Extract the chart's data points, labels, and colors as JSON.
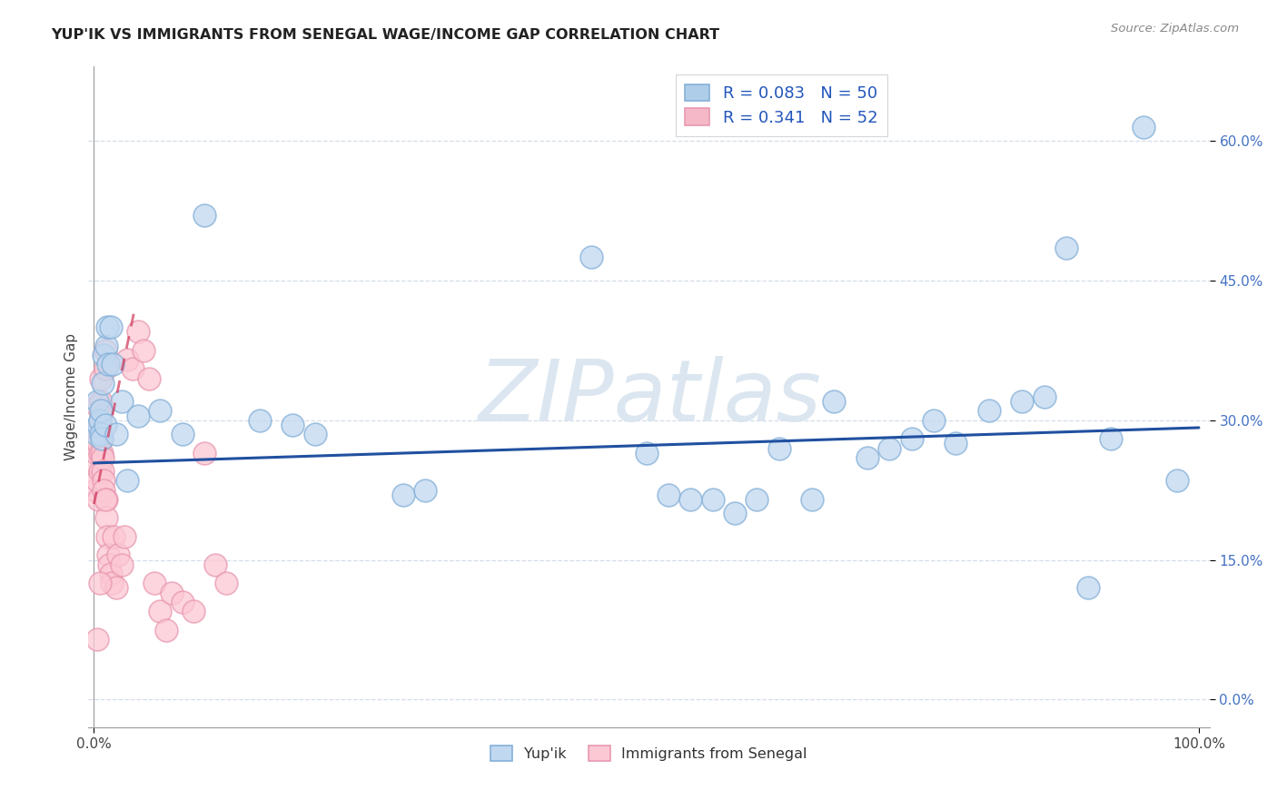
{
  "title": "YUP'IK VS IMMIGRANTS FROM SENEGAL WAGE/INCOME GAP CORRELATION CHART",
  "source": "Source: ZipAtlas.com",
  "ylabel": "Wage/Income Gap",
  "xlim": [
    -0.005,
    1.01
  ],
  "ylim": [
    -0.03,
    0.68
  ],
  "yticks": [
    0.0,
    0.15,
    0.3,
    0.45,
    0.6
  ],
  "xtick_labels": [
    "0.0%",
    "100.0%"
  ],
  "xtick_positions": [
    0.0,
    1.0
  ],
  "ytick_labels": [
    "0.0%",
    "15.0%",
    "30.0%",
    "45.0%",
    "60.0%"
  ],
  "legend_R_entries": [
    {
      "label": "R = 0.083   N = 50",
      "color": "#aecde8"
    },
    {
      "label": "R = 0.341   N = 52",
      "color": "#f5b8c8"
    }
  ],
  "watermark": "ZIPatlas",
  "watermark_color": "#d8e4ef",
  "blue_color": "#a8c8e8",
  "pink_color": "#f5b0c0",
  "blue_fill": "#c0d8f0",
  "pink_fill": "#fcc8d4",
  "blue_edge": "#85b0d8",
  "pink_edge": "#e898b0",
  "blue_line_color": "#2050a0",
  "pink_line_color": "#d03055",
  "background_color": "#ffffff",
  "grid_color": "#d4dde8",
  "blue_tick_color": "#4472c4",
  "yupik_x": [
    0.002,
    0.003,
    0.004,
    0.005,
    0.006,
    0.006,
    0.007,
    0.008,
    0.009,
    0.01,
    0.011,
    0.012,
    0.013,
    0.015,
    0.017,
    0.02,
    0.025,
    0.03,
    0.04,
    0.06,
    0.08,
    0.1,
    0.15,
    0.18,
    0.2,
    0.28,
    0.3,
    0.45,
    0.5,
    0.52,
    0.54,
    0.56,
    0.58,
    0.6,
    0.62,
    0.65,
    0.67,
    0.7,
    0.72,
    0.74,
    0.76,
    0.78,
    0.81,
    0.84,
    0.86,
    0.88,
    0.9,
    0.92,
    0.95,
    0.98
  ],
  "yupik_y": [
    0.285,
    0.32,
    0.295,
    0.3,
    0.285,
    0.31,
    0.28,
    0.34,
    0.37,
    0.295,
    0.38,
    0.4,
    0.36,
    0.4,
    0.36,
    0.285,
    0.32,
    0.235,
    0.305,
    0.31,
    0.285,
    0.52,
    0.3,
    0.295,
    0.285,
    0.22,
    0.225,
    0.475,
    0.265,
    0.22,
    0.215,
    0.215,
    0.2,
    0.215,
    0.27,
    0.215,
    0.32,
    0.26,
    0.27,
    0.28,
    0.3,
    0.275,
    0.31,
    0.32,
    0.325,
    0.485,
    0.12,
    0.28,
    0.615,
    0.235
  ],
  "senegal_x": [
    0.001,
    0.001,
    0.002,
    0.002,
    0.003,
    0.003,
    0.003,
    0.004,
    0.004,
    0.005,
    0.005,
    0.005,
    0.006,
    0.006,
    0.006,
    0.007,
    0.007,
    0.008,
    0.008,
    0.009,
    0.009,
    0.01,
    0.01,
    0.011,
    0.011,
    0.012,
    0.013,
    0.014,
    0.015,
    0.016,
    0.018,
    0.02,
    0.022,
    0.025,
    0.028,
    0.03,
    0.035,
    0.04,
    0.045,
    0.05,
    0.055,
    0.06,
    0.065,
    0.07,
    0.08,
    0.09,
    0.1,
    0.11,
    0.12,
    0.01,
    0.005,
    0.003
  ],
  "senegal_y": [
    0.255,
    0.225,
    0.29,
    0.265,
    0.315,
    0.285,
    0.235,
    0.275,
    0.215,
    0.265,
    0.245,
    0.295,
    0.345,
    0.32,
    0.305,
    0.28,
    0.265,
    0.26,
    0.245,
    0.235,
    0.225,
    0.375,
    0.355,
    0.215,
    0.195,
    0.175,
    0.155,
    0.145,
    0.135,
    0.125,
    0.175,
    0.12,
    0.155,
    0.145,
    0.175,
    0.365,
    0.355,
    0.395,
    0.375,
    0.345,
    0.125,
    0.095,
    0.075,
    0.115,
    0.105,
    0.095,
    0.265,
    0.145,
    0.125,
    0.215,
    0.125,
    0.065
  ],
  "blue_trend_x": [
    0.0,
    1.0
  ],
  "blue_trend_y": [
    0.254,
    0.292
  ],
  "pink_trend_x": [
    0.0,
    0.037
  ],
  "pink_trend_y": [
    0.21,
    0.42
  ]
}
